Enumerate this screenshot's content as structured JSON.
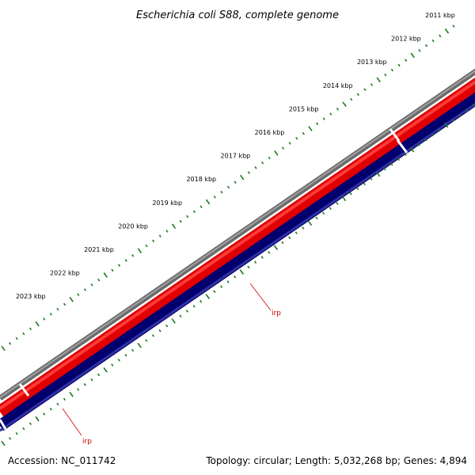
{
  "title": "Escherichia coli S88, complete genome",
  "footer": {
    "accession": "Accession: NC_011742",
    "summary": "Topology: circular; Length: 5,032,268 bp; Genes: 4,894"
  },
  "ticks": [
    "2011 kbp",
    "2012 kbp",
    "2013 kbp",
    "2014 kbp",
    "2015 kbp",
    "2016 kbp",
    "2017 kbp",
    "2018 kbp",
    "2019 kbp",
    "2020 kbp",
    "2021 kbp",
    "2022 kbp",
    "2023 kbp"
  ],
  "gene_labels": [
    "irp",
    "irp"
  ],
  "colors": {
    "backbone": "#808080",
    "forward_strand": "#ff0000",
    "reverse_strand": "#000080",
    "ticks": "#1a7a1a",
    "label": "#d40000"
  }
}
